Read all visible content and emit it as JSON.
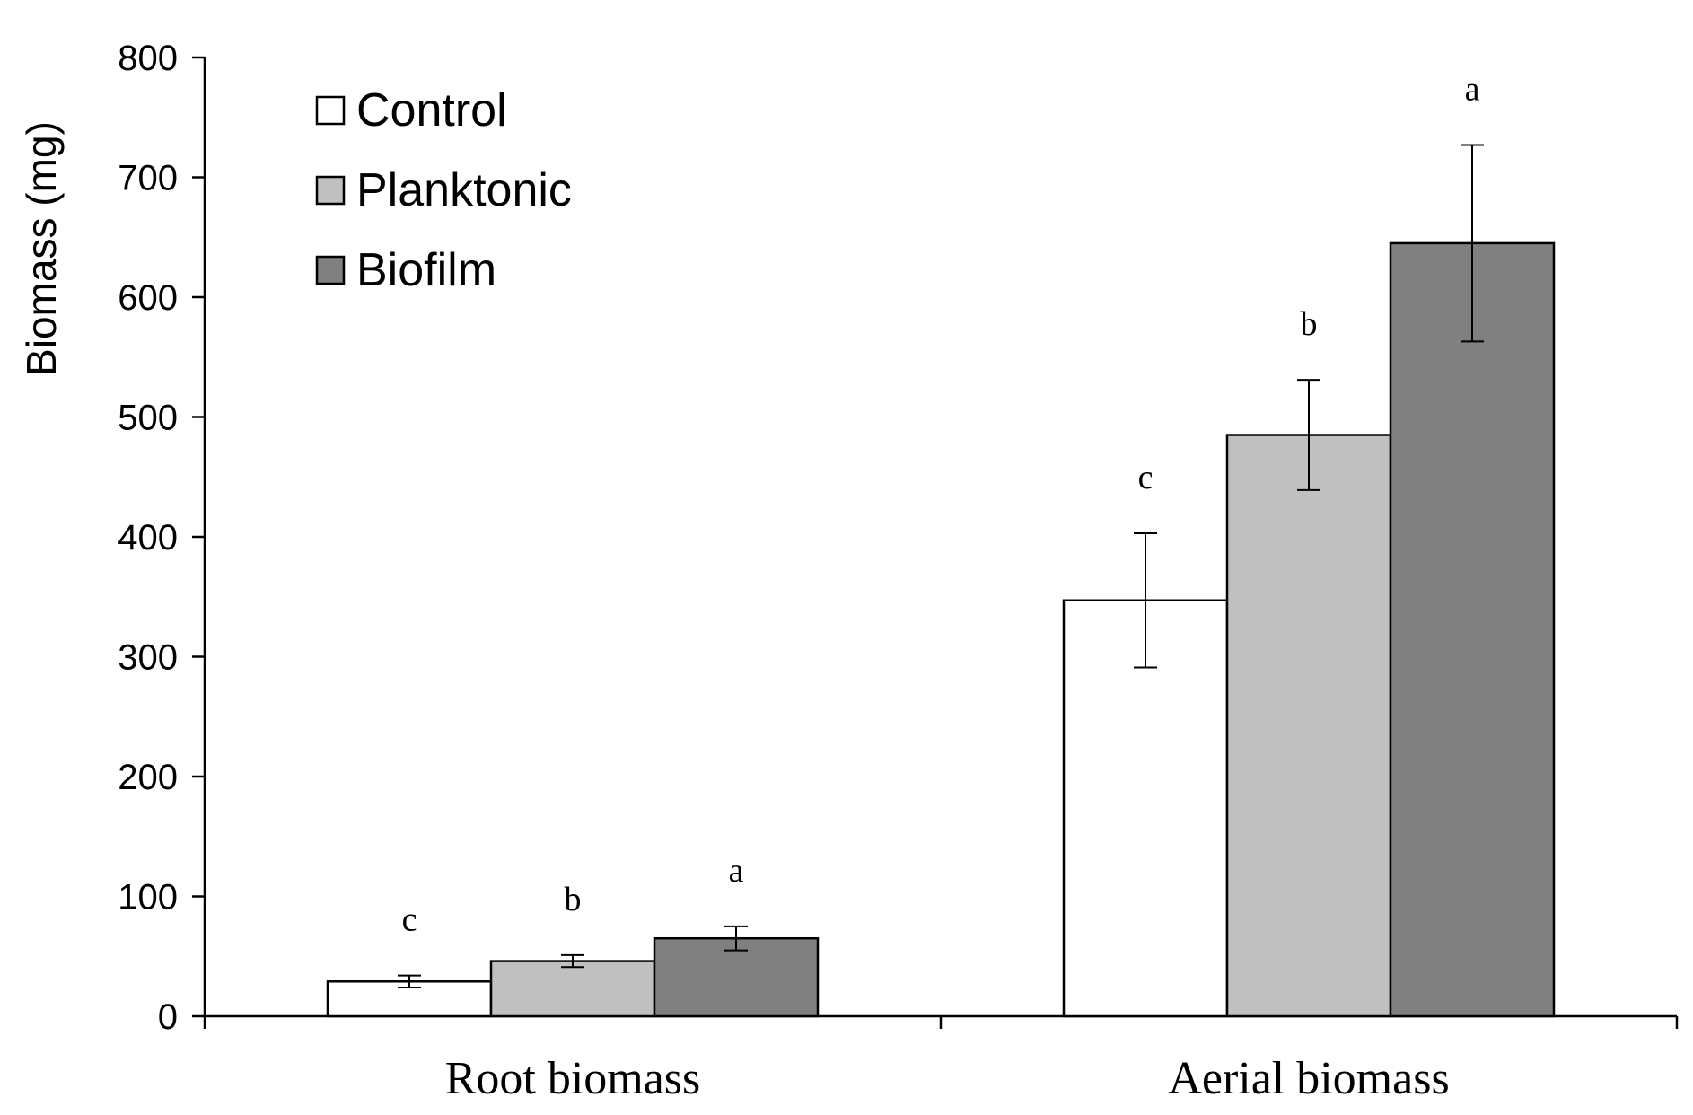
{
  "chart_data": {
    "type": "bar",
    "title": "",
    "xlabel": "",
    "ylabel": "Biomass (mg)",
    "ylim": [
      0,
      800
    ],
    "yticks": [
      0,
      100,
      200,
      300,
      400,
      500,
      600,
      700,
      800
    ],
    "ytick_labels": [
      "0",
      "100",
      "200",
      "300",
      "400",
      "500",
      "600",
      "700",
      "800"
    ],
    "grid": false,
    "legend_position": "top-left",
    "categories": [
      "Root biomass",
      "Aerial biomass"
    ],
    "series": [
      {
        "name": "Control",
        "color": "#ffffff",
        "values": [
          29,
          347
        ],
        "errors": [
          5,
          56
        ],
        "significance": [
          "c",
          "c"
        ]
      },
      {
        "name": "Planktonic",
        "color": "#c0c0c0",
        "values": [
          46,
          485
        ],
        "errors": [
          5,
          46
        ],
        "significance": [
          "b",
          "b"
        ]
      },
      {
        "name": "Biofilm",
        "color": "#808080",
        "values": [
          65,
          645
        ],
        "errors": [
          10,
          82
        ],
        "significance": [
          "a",
          "a"
        ]
      }
    ]
  }
}
